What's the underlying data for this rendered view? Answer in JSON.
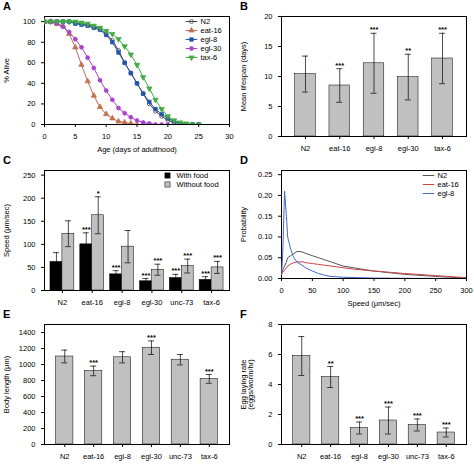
{
  "chart_data": [
    {
      "type": "line",
      "title": "A",
      "xlabel": "Age (days of adulthood)",
      "ylabel": "% Alive",
      "xlim": [
        0,
        30
      ],
      "ylim": [
        0,
        105
      ],
      "xticks": [
        0,
        5,
        10,
        15,
        20,
        25,
        30
      ],
      "yticks": [
        0,
        20,
        40,
        60,
        80,
        100
      ],
      "legend": "upper right",
      "series": [
        {
          "name": "N2",
          "color": "#444444",
          "marker": "circle-open",
          "x": [
            0,
            1,
            2,
            3,
            4,
            5,
            6,
            7,
            8,
            9,
            10,
            11,
            12,
            13,
            14,
            15,
            16,
            17,
            18,
            19,
            20,
            21,
            22,
            23,
            24,
            25
          ],
          "values": [
            100,
            100,
            100,
            100,
            100,
            99,
            98,
            97,
            95,
            93,
            88,
            82,
            72,
            60,
            50,
            40,
            30,
            20,
            13,
            8,
            4,
            2,
            1,
            0,
            0,
            0
          ]
        },
        {
          "name": "eat-16",
          "color": "#c07050",
          "marker": "triangle-up",
          "x": [
            0,
            1,
            2,
            3,
            4,
            5,
            6,
            7,
            8,
            9,
            10,
            11,
            12,
            13,
            14,
            15,
            16
          ],
          "values": [
            100,
            100,
            98,
            96,
            88,
            75,
            58,
            42,
            28,
            17,
            10,
            6,
            3,
            2,
            1,
            0,
            0
          ]
        },
        {
          "name": "egl-8",
          "color": "#2255aa",
          "marker": "square",
          "x": [
            0,
            1,
            2,
            3,
            4,
            5,
            6,
            7,
            8,
            9,
            10,
            11,
            12,
            13,
            14,
            15,
            16,
            17,
            18,
            19,
            20,
            21,
            22,
            23,
            24,
            25
          ],
          "values": [
            100,
            100,
            100,
            100,
            100,
            98,
            97,
            96,
            94,
            92,
            87,
            80,
            70,
            60,
            50,
            40,
            30,
            22,
            15,
            10,
            6,
            3,
            1,
            0,
            0,
            0
          ]
        },
        {
          "name": "egl-30",
          "color": "#aa44cc",
          "marker": "circle",
          "x": [
            0,
            1,
            2,
            3,
            4,
            5,
            6,
            7,
            8,
            9,
            10,
            11,
            12,
            13,
            14,
            15,
            16,
            17,
            18,
            19,
            20
          ],
          "values": [
            100,
            100,
            98,
            95,
            90,
            83,
            75,
            65,
            55,
            43,
            33,
            24,
            16,
            11,
            7,
            4,
            2,
            1,
            0,
            0,
            0
          ]
        },
        {
          "name": "tax-6",
          "color": "#44aa44",
          "marker": "triangle-down",
          "x": [
            0,
            1,
            2,
            3,
            4,
            5,
            6,
            7,
            8,
            9,
            10,
            11,
            12,
            13,
            14,
            15,
            16,
            17,
            18,
            19,
            20,
            21,
            22,
            23,
            24,
            25
          ],
          "values": [
            100,
            100,
            100,
            100,
            100,
            100,
            99,
            98,
            96,
            94,
            91,
            88,
            83,
            76,
            68,
            58,
            46,
            35,
            24,
            15,
            8,
            4,
            2,
            1,
            0,
            0
          ]
        }
      ]
    },
    {
      "type": "bar",
      "title": "B",
      "ylabel": "Mean lifespan (days)",
      "ylim": [
        0,
        20
      ],
      "yticks": [
        0,
        5,
        10,
        15,
        20
      ],
      "categories": [
        "N2",
        "eat-16",
        "egl-8",
        "egl-30",
        "tax-6"
      ],
      "values": [
        10.4,
        8.5,
        12.2,
        9.9,
        13.0
      ],
      "errors": [
        3.0,
        2.8,
        5.0,
        3.8,
        4.2
      ],
      "significance": [
        null,
        "***",
        "***",
        "**",
        "***"
      ],
      "color": "#c0c0c0"
    },
    {
      "type": "bar",
      "title": "C",
      "ylabel": "Speed (μm/sec)",
      "ylim": [
        0,
        260
      ],
      "yticks": [
        0,
        50,
        100,
        150,
        200,
        250
      ],
      "categories": [
        "N2",
        "eat-16",
        "egl-8",
        "egl-30",
        "unc-73",
        "tax-6"
      ],
      "legend": "upper right",
      "series": [
        {
          "name": "With food",
          "color": "#000000",
          "values": [
            62,
            100,
            35,
            20,
            27,
            23
          ],
          "errors": [
            20,
            25,
            8,
            6,
            8,
            7
          ],
          "significance": [
            null,
            "***",
            "***",
            "***",
            "***",
            "***"
          ]
        },
        {
          "name": "Without food",
          "color": "#c0c0c0",
          "values": [
            123,
            163,
            95,
            45,
            53,
            50
          ],
          "errors": [
            28,
            40,
            35,
            12,
            15,
            13
          ],
          "significance": [
            null,
            "*",
            null,
            "***",
            "***",
            "***"
          ]
        }
      ]
    },
    {
      "type": "line",
      "title": "D",
      "xlabel": "Speed (μm/sec)",
      "ylabel": "Probability",
      "xlim": [
        0,
        300
      ],
      "ylim": [
        0,
        0.26
      ],
      "xticks": [
        0,
        50,
        100,
        150,
        200,
        250,
        300
      ],
      "yticks": [
        {
          "value": 0,
          "label": "0.00"
        },
        0.05,
        {
          "value": 0.1,
          "label": "0.10"
        },
        0.15,
        {
          "value": 0.2,
          "label": "0.20"
        },
        0.25
      ],
      "legend": "upper right",
      "series": [
        {
          "name": "N2",
          "color": "#555555",
          "x": [
            0,
            2,
            5,
            8,
            10,
            15,
            20,
            25,
            30,
            35,
            40,
            50,
            60,
            70,
            80,
            90,
            100,
            120,
            150,
            200,
            250,
            300
          ],
          "values": [
            0.01,
            0.02,
            0.03,
            0.04,
            0.05,
            0.055,
            0.06,
            0.065,
            0.065,
            0.063,
            0.06,
            0.055,
            0.05,
            0.045,
            0.04,
            0.035,
            0.03,
            0.025,
            0.018,
            0.01,
            0.005,
            0.001
          ]
        },
        {
          "name": "eat-16",
          "color": "#cc4444",
          "x": [
            0,
            2,
            5,
            8,
            10,
            15,
            20,
            25,
            30,
            35,
            40,
            50,
            60,
            70,
            80,
            90,
            100,
            120,
            150,
            200,
            250,
            300
          ],
          "values": [
            0.01,
            0.015,
            0.02,
            0.025,
            0.03,
            0.035,
            0.038,
            0.04,
            0.04,
            0.04,
            0.038,
            0.036,
            0.034,
            0.032,
            0.03,
            0.028,
            0.026,
            0.022,
            0.018,
            0.012,
            0.007,
            0.002
          ]
        },
        {
          "name": "egl-8",
          "color": "#4466cc",
          "x": [
            0,
            2,
            5,
            8,
            10,
            15,
            20,
            25,
            30,
            35,
            40,
            50,
            60,
            70,
            80,
            100,
            150,
            200,
            250,
            300
          ],
          "values": [
            0.01,
            0.06,
            0.21,
            0.15,
            0.1,
            0.07,
            0.05,
            0.04,
            0.035,
            0.03,
            0.025,
            0.018,
            0.012,
            0.008,
            0.005,
            0.003,
            0.001,
            0.0005,
            0.0002,
            0.0001
          ]
        }
      ]
    },
    {
      "type": "bar",
      "title": "E",
      "ylabel": "Body length (μm)",
      "ylim": [
        0,
        1500
      ],
      "yticks": [
        0,
        200,
        400,
        600,
        800,
        1000,
        1200,
        1400
      ],
      "categories": [
        "N2",
        "eat-16",
        "egl-8",
        "egl-30",
        "unc-73",
        "tax-6"
      ],
      "values": [
        1100,
        920,
        1090,
        1210,
        1060,
        820
      ],
      "errors": [
        80,
        60,
        70,
        85,
        65,
        55
      ],
      "significance": [
        null,
        "***",
        null,
        "***",
        null,
        "***"
      ],
      "color": "#c0c0c0"
    },
    {
      "type": "bar",
      "title": "F",
      "ylabel": "Egg laying rate\n(eggs/worm/hr)",
      "ylim": [
        0,
        8
      ],
      "yticks": [
        0,
        2,
        4,
        6,
        8
      ],
      "categories": [
        "N2",
        "eat-16",
        "egl-8",
        "egl-30",
        "unc-73",
        "tax-6"
      ],
      "values": [
        5.9,
        4.5,
        1.1,
        1.6,
        1.3,
        0.8
      ],
      "errors": [
        1.3,
        0.7,
        0.4,
        0.9,
        0.4,
        0.3
      ],
      "significance": [
        null,
        "**",
        "***",
        "***",
        "***",
        "***"
      ],
      "color": "#c0c0c0"
    }
  ]
}
